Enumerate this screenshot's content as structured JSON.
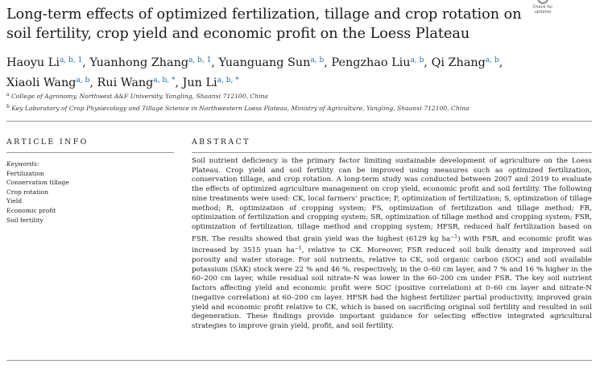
{
  "title": "Long-term effects of optimized fertilization, tillage and crop rotation on soil fertility, crop yield and economic profit on the Loess Plateau",
  "badge": {
    "line1": "Check for",
    "line2": "updates",
    "icon": "check-for-updates-icon"
  },
  "authors": [
    {
      "name": "Haoyu Li",
      "sup": "a, b, 1",
      "sep": ","
    },
    {
      "name": "Yuanhong Zhang",
      "sup": "a, b, 1",
      "sep": ","
    },
    {
      "name": "Yuanguang Sun",
      "sup": "a, b",
      "sep": ","
    },
    {
      "name": "Pengzhao Liu",
      "sup": "a, b",
      "sep": ","
    },
    {
      "name": "Qi Zhang",
      "sup": "a, b",
      "sep": ","
    },
    {
      "name": "Xiaoli Wang",
      "sup": "a, b",
      "sep": ","
    },
    {
      "name": "Rui Wang",
      "sup": "a, b, *",
      "sep": ","
    },
    {
      "name": "Jun Li",
      "sup": "a, b, *",
      "sep": ""
    }
  ],
  "affiliations": [
    {
      "sup": "a",
      "text": "College of Agronomy, Northwest A&F University, Yangling, Shaanxi 712100, China"
    },
    {
      "sup": "b",
      "text": "Key Laboratory of Crop Physiecology and Tillage Science in Northwestern Loess Plateau, Ministry of Agriculture, Yangling, Shaanxi 712100, China"
    }
  ],
  "article_info": {
    "heading": "ARTICLE INFO",
    "keywords_label": "Keywords:",
    "keywords": [
      "Fertilization",
      "Conservation tillage",
      "Crop rotation",
      "Yield",
      "Economic profit",
      "Soil fertility"
    ]
  },
  "abstract": {
    "heading": "ABSTRACT",
    "part1": "Soil nutrient deficiency is the primary factor limiting sustainable development of agriculture on the Loess Plateau. Crop yield and soil fertility can be improved using measures such as optimized fertilization, conservation tillage, and crop rotation. A long-term study was conducted between 2007 and 2019 to evaluate the effects of optimized agriculture management on crop yield, economic profit and soil fertility. The following nine treatments were used: CK, local farmers’ practice; F, optimization of fertilization; S, optimization of tillage method; R, optimization of cropping system; FS, optimization of fertilization and tillage method; FR, optimization of fertilization and cropping system; SR, optimization of tillage method and cropping system; FSR, optimization of fertilization, tillage method and cropping system; HFSR, reduced half fertilization based on FSR. The results showed that grain yield was the highest (6129 kg ha",
    "sup1": "−1",
    "part2": ") with FSR, and economic profit was increased by 3515 yuan ha",
    "sup2": "−1",
    "part3": ", relative to CK. Moreover, FSR reduced soil bulk density and improved soil porosity and water storage. For soil nutrients, relative to CK, soil organic carbon (SOC) and soil available potassium (SAK) stock were 22 % and 46 %, respectively, in the 0–60 cm layer, and 7 % and 16 % higher in the 60–200 cm layer, while residual soil nitrate-N was lower in the 60–200 cm under FSR. The key soil nutrient factors affecting yield and economic profit were SOC (positive correlation) at 0–60 cm layer and nitrate-N (negative correlation) at 60–200 cm layer. HFSR had the highest fertilizer partial productivity, improved grain yield and economic profit relative to CK, which is based on sacrificing original soil fertility and resulted in soil degeneration. These findings provide important guidance for selecting effective integrated agricultural strategies to improve grain yield, profit, and soil fertility."
  }
}
